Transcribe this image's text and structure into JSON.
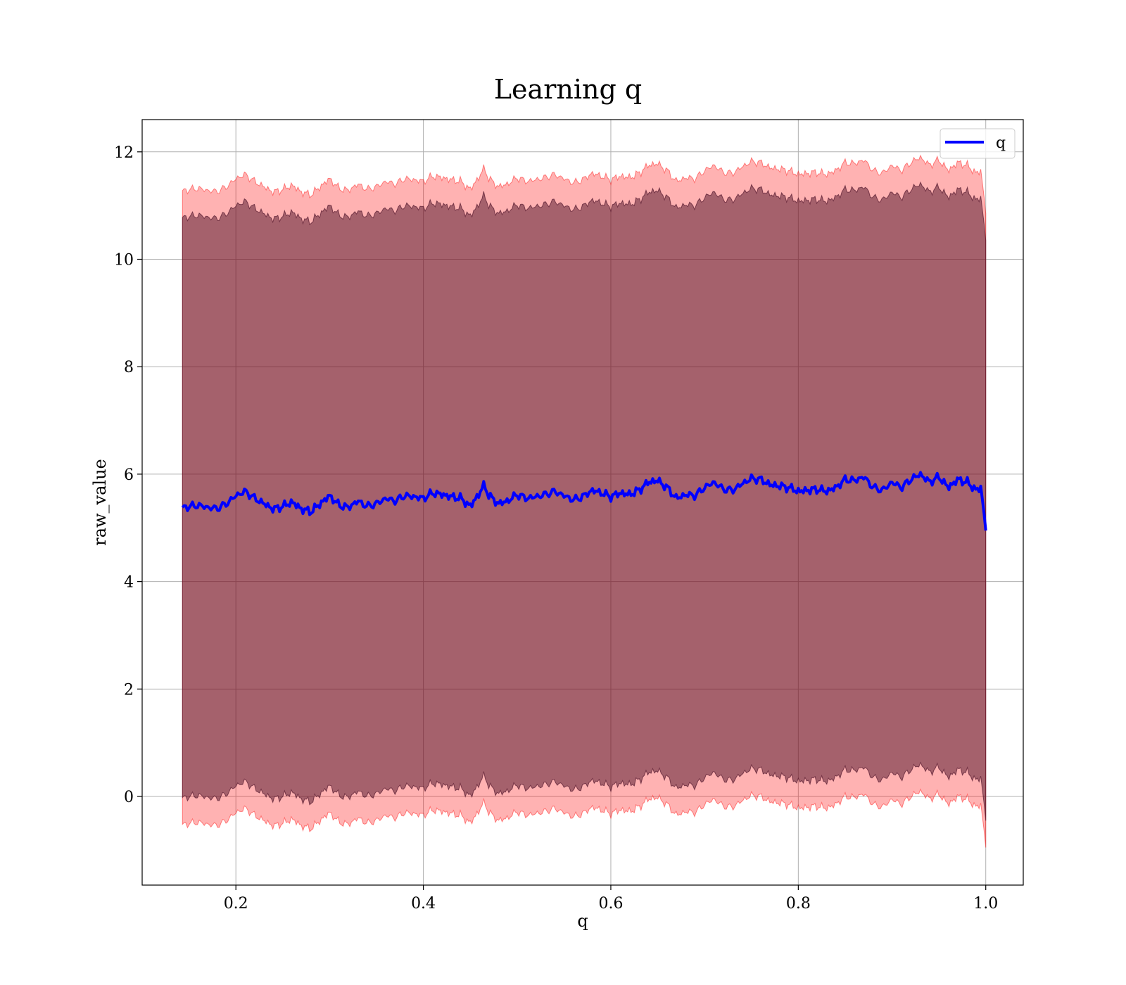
{
  "chart_data": {
    "type": "line",
    "title": "Learning q",
    "xlabel": "q",
    "ylabel": "raw_value",
    "xlim": [
      0.1,
      1.04
    ],
    "ylim": [
      -1.65,
      12.6
    ],
    "xticks": [
      0.2,
      0.4,
      0.6,
      0.8,
      1.0
    ],
    "xtick_labels": [
      "0.2",
      "0.4",
      "0.6",
      "0.8",
      "1.0"
    ],
    "yticks": [
      0,
      2,
      4,
      6,
      8,
      10,
      12
    ],
    "ytick_labels": [
      "0",
      "2",
      "4",
      "6",
      "8",
      "10",
      "12"
    ],
    "grid": true,
    "legend": {
      "position": "top-right",
      "entries": [
        "q"
      ]
    },
    "colors": {
      "line": "#0000ff",
      "outer_band": "#ff0000",
      "inner_band": "#4b0f26"
    },
    "bands": [
      {
        "role": "outer",
        "half_width": 5.9,
        "opacity": 0.3
      },
      {
        "role": "inner",
        "half_width": 5.4,
        "opacity": 0.5
      }
    ],
    "series": [
      {
        "name": "q",
        "x": [
          0.143,
          0.16,
          0.17,
          0.18,
          0.19,
          0.2,
          0.21,
          0.22,
          0.23,
          0.24,
          0.25,
          0.26,
          0.27,
          0.28,
          0.29,
          0.3,
          0.31,
          0.32,
          0.33,
          0.34,
          0.35,
          0.36,
          0.37,
          0.38,
          0.39,
          0.4,
          0.41,
          0.42,
          0.43,
          0.44,
          0.45,
          0.46,
          0.465,
          0.47,
          0.48,
          0.49,
          0.5,
          0.51,
          0.52,
          0.53,
          0.54,
          0.55,
          0.56,
          0.57,
          0.58,
          0.59,
          0.6,
          0.61,
          0.62,
          0.63,
          0.64,
          0.65,
          0.66,
          0.67,
          0.68,
          0.69,
          0.7,
          0.71,
          0.72,
          0.73,
          0.74,
          0.75,
          0.76,
          0.77,
          0.78,
          0.79,
          0.8,
          0.81,
          0.82,
          0.83,
          0.84,
          0.85,
          0.86,
          0.87,
          0.88,
          0.89,
          0.9,
          0.91,
          0.92,
          0.93,
          0.94,
          0.95,
          0.96,
          0.97,
          0.98,
          0.99,
          0.995,
          1.0
        ],
        "values": [
          5.38,
          5.42,
          5.38,
          5.36,
          5.45,
          5.6,
          5.68,
          5.55,
          5.45,
          5.35,
          5.4,
          5.48,
          5.35,
          5.3,
          5.45,
          5.6,
          5.42,
          5.38,
          5.5,
          5.4,
          5.45,
          5.55,
          5.5,
          5.6,
          5.58,
          5.55,
          5.65,
          5.62,
          5.58,
          5.55,
          5.4,
          5.65,
          5.8,
          5.6,
          5.45,
          5.5,
          5.62,
          5.55,
          5.58,
          5.62,
          5.68,
          5.6,
          5.52,
          5.58,
          5.7,
          5.65,
          5.58,
          5.65,
          5.62,
          5.7,
          5.85,
          5.88,
          5.75,
          5.55,
          5.62,
          5.6,
          5.75,
          5.85,
          5.72,
          5.7,
          5.82,
          5.92,
          5.9,
          5.8,
          5.78,
          5.75,
          5.68,
          5.7,
          5.72,
          5.68,
          5.75,
          5.9,
          5.88,
          5.95,
          5.75,
          5.7,
          5.85,
          5.75,
          5.9,
          6.0,
          5.85,
          5.95,
          5.75,
          5.9,
          5.85,
          5.7,
          5.75,
          4.95
        ]
      }
    ]
  }
}
